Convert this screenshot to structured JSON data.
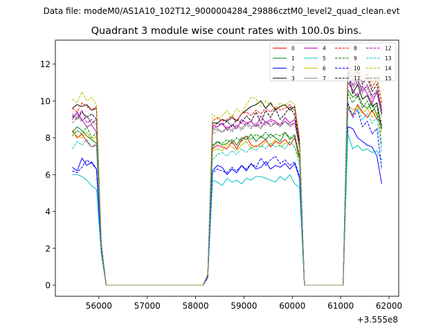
{
  "figure": {
    "suptitle": "Data file: modeM0/AS1A10_102T12_9000004284_29886cztM0_level2_quad_clean.evt"
  },
  "chart_data": {
    "type": "line",
    "title": "Quadrant 3 module wise count rates with 100.0s bins.",
    "xlabel": "",
    "ylabel": "",
    "x_offset_label": "+3.555e8",
    "xlim": [
      55100,
      62200
    ],
    "ylim": [
      -0.6,
      13.3
    ],
    "xticks": [
      56000,
      57000,
      58000,
      59000,
      60000,
      61000,
      62000
    ],
    "xtick_labels": [
      "56000",
      "57000",
      "58000",
      "59000",
      "60000",
      "61000",
      "62000"
    ],
    "yticks": [
      0,
      2,
      4,
      6,
      8,
      10,
      12
    ],
    "ytick_labels": [
      "0",
      "2",
      "4",
      "6",
      "8",
      "10",
      "12"
    ],
    "legend_position": "top-right",
    "x": [
      55450,
      55550,
      55650,
      55750,
      55850,
      55950,
      56050,
      56150,
      56250,
      56350,
      56450,
      56550,
      56650,
      56750,
      56850,
      56950,
      57050,
      57150,
      57250,
      57350,
      57450,
      57550,
      57650,
      57750,
      57850,
      57950,
      58050,
      58150,
      58250,
      58350,
      58450,
      58550,
      58650,
      58750,
      58850,
      58950,
      59050,
      59150,
      59250,
      59350,
      59450,
      59550,
      59650,
      59750,
      59850,
      59950,
      60050,
      60150,
      60250,
      60350,
      60450,
      60550,
      60650,
      60750,
      60850,
      60950,
      61050,
      61150,
      61250,
      61350,
      61450,
      61550,
      61650,
      61750,
      61850
    ],
    "series": [
      {
        "name": "0",
        "color": "#ff0000",
        "dash": "solid",
        "values": [
          8.4,
          8.0,
          8.2,
          7.8,
          7.5,
          7.6,
          2.0,
          0,
          0,
          0,
          0,
          0,
          0,
          0,
          0,
          0,
          0,
          0,
          0,
          0,
          0,
          0,
          0,
          0,
          0,
          0,
          0,
          0,
          0.5,
          7.4,
          7.6,
          7.5,
          7.4,
          7.8,
          7.4,
          7.9,
          8.1,
          7.6,
          7.5,
          7.7,
          7.9,
          7.5,
          7.8,
          7.7,
          7.9,
          7.6,
          8.0,
          6.8,
          0,
          0,
          0,
          0,
          0,
          0,
          0,
          0,
          0,
          9.6,
          9.2,
          9.8,
          9.4,
          9.1,
          9.5,
          9.0,
          8.9
        ]
      },
      {
        "name": "1",
        "color": "#008000",
        "dash": "solid",
        "values": [
          8.3,
          8.6,
          8.4,
          8.1,
          7.9,
          7.7,
          2.0,
          0,
          0,
          0,
          0,
          0,
          0,
          0,
          0,
          0,
          0,
          0,
          0,
          0,
          0,
          0,
          0,
          0,
          0,
          0,
          0,
          0,
          0.5,
          7.5,
          7.8,
          7.6,
          7.7,
          7.9,
          7.6,
          8.0,
          7.9,
          8.2,
          7.8,
          8.1,
          7.9,
          8.2,
          8.0,
          7.8,
          8.3,
          7.9,
          8.1,
          6.9,
          0,
          0,
          0,
          0,
          0,
          0,
          0,
          0,
          0,
          10.6,
          10.2,
          10.4,
          9.8,
          9.6,
          9.9,
          9.2,
          8.7
        ]
      },
      {
        "name": "2",
        "color": "#0000ff",
        "dash": "solid",
        "values": [
          6.4,
          6.2,
          6.9,
          6.5,
          6.7,
          6.3,
          1.8,
          0,
          0,
          0,
          0,
          0,
          0,
          0,
          0,
          0,
          0,
          0,
          0,
          0,
          0,
          0,
          0,
          0,
          0,
          0,
          0,
          0,
          0.4,
          6.2,
          6.5,
          6.4,
          6.0,
          6.3,
          6.1,
          6.5,
          6.2,
          6.6,
          6.3,
          6.4,
          6.7,
          6.3,
          6.5,
          6.4,
          6.6,
          6.3,
          6.6,
          5.8,
          0,
          0,
          0,
          0,
          0,
          0,
          0,
          0,
          0,
          8.6,
          8.5,
          8.0,
          7.8,
          7.6,
          7.5,
          7.0,
          5.5
        ]
      },
      {
        "name": "3",
        "color": "#000000",
        "dash": "solid",
        "values": [
          9.6,
          9.8,
          9.7,
          9.8,
          9.5,
          9.6,
          2.2,
          0,
          0,
          0,
          0,
          0,
          0,
          0,
          0,
          0,
          0,
          0,
          0,
          0,
          0,
          0,
          0,
          0,
          0,
          0,
          0,
          0,
          0.5,
          8.8,
          8.8,
          9.0,
          8.9,
          9.1,
          8.9,
          9.3,
          9.5,
          9.7,
          9.8,
          10.0,
          9.6,
          9.9,
          9.5,
          9.7,
          9.8,
          9.5,
          9.7,
          7.8,
          0,
          0,
          0,
          0,
          0,
          0,
          0,
          0,
          0,
          11.5,
          10.4,
          10.9,
          10.1,
          10.3,
          9.7,
          9.9,
          8.5
        ]
      },
      {
        "name": "4",
        "color": "#bf00bf",
        "dash": "solid",
        "values": [
          9.0,
          9.4,
          9.0,
          8.6,
          8.7,
          8.3,
          2.1,
          0,
          0,
          0,
          0,
          0,
          0,
          0,
          0,
          0,
          0,
          0,
          0,
          0,
          0,
          0,
          0,
          0,
          0,
          0,
          0,
          0,
          0.5,
          8.5,
          8.6,
          8.8,
          8.4,
          8.7,
          8.5,
          9.0,
          8.8,
          8.9,
          8.6,
          9.2,
          8.8,
          9.0,
          8.9,
          8.7,
          9.1,
          8.8,
          9.0,
          7.6,
          0,
          0,
          0,
          0,
          0,
          0,
          0,
          0,
          0,
          11.0,
          10.6,
          10.2,
          10.8,
          10.4,
          9.9,
          10.5,
          9.4
        ]
      },
      {
        "name": "5",
        "color": "#00bfbf",
        "dash": "solid",
        "values": [
          6.0,
          6.0,
          5.9,
          5.7,
          5.4,
          5.2,
          1.7,
          0,
          0,
          0,
          0,
          0,
          0,
          0,
          0,
          0,
          0,
          0,
          0,
          0,
          0,
          0,
          0,
          0,
          0,
          0,
          0,
          0,
          0.4,
          5.7,
          5.6,
          5.4,
          5.8,
          5.6,
          5.7,
          5.5,
          5.8,
          5.7,
          5.9,
          5.9,
          5.8,
          5.7,
          5.6,
          5.9,
          5.7,
          6.0,
          5.5,
          5.3,
          0,
          0,
          0,
          0,
          0,
          0,
          0,
          0,
          0,
          8.2,
          7.4,
          7.6,
          7.3,
          7.4,
          7.2,
          7.3,
          6.8
        ]
      },
      {
        "name": "6",
        "color": "#bfbf00",
        "dash": "solid",
        "values": [
          8.3,
          8.1,
          8.0,
          8.3,
          7.9,
          8.1,
          2.0,
          0,
          0,
          0,
          0,
          0,
          0,
          0,
          0,
          0,
          0,
          0,
          0,
          0,
          0,
          0,
          0,
          0,
          0,
          0,
          0,
          0,
          0.5,
          7.3,
          7.4,
          7.3,
          7.7,
          7.5,
          7.3,
          7.6,
          7.8,
          7.4,
          7.6,
          7.5,
          7.8,
          7.6,
          7.9,
          7.5,
          7.7,
          7.8,
          7.5,
          6.8,
          0,
          0,
          0,
          0,
          0,
          0,
          0,
          0,
          0,
          9.8,
          9.5,
          9.7,
          9.3,
          9.6,
          9.1,
          9.4,
          8.3
        ]
      },
      {
        "name": "7",
        "color": "#808080",
        "dash": "solid",
        "values": [
          9.1,
          9.3,
          8.9,
          9.2,
          8.8,
          9.0,
          2.2,
          0,
          0,
          0,
          0,
          0,
          0,
          0,
          0,
          0,
          0,
          0,
          0,
          0,
          0,
          0,
          0,
          0,
          0,
          0,
          0,
          0,
          0.5,
          8.4,
          8.5,
          8.3,
          8.6,
          8.4,
          8.7,
          8.5,
          8.8,
          8.6,
          8.7,
          8.5,
          8.9,
          8.6,
          8.8,
          8.7,
          8.9,
          8.6,
          8.8,
          7.5,
          0,
          0,
          0,
          0,
          0,
          0,
          0,
          0,
          0,
          11.3,
          10.9,
          11.2,
          10.6,
          10.8,
          10.3,
          10.5,
          9.7
        ]
      },
      {
        "name": "8",
        "color": "#ff0000",
        "dash": "dashed",
        "values": [
          9.6,
          9.4,
          9.9,
          9.7,
          9.5,
          9.7,
          2.3,
          0,
          0,
          0,
          0,
          0,
          0,
          0,
          0,
          0,
          0,
          0,
          0,
          0,
          0,
          0,
          0,
          0,
          0,
          0,
          0,
          0,
          0.6,
          8.9,
          9.1,
          8.9,
          9.0,
          9.2,
          8.9,
          9.3,
          9.4,
          9.2,
          9.5,
          9.3,
          9.6,
          9.4,
          9.7,
          9.5,
          9.6,
          9.8,
          9.5,
          7.9,
          0,
          0,
          0,
          0,
          0,
          0,
          0,
          0,
          0,
          12.0,
          11.4,
          11.8,
          11.0,
          11.5,
          10.7,
          11.2,
          9.9
        ]
      },
      {
        "name": "9",
        "color": "#008000",
        "dash": "dashed",
        "values": [
          8.1,
          8.4,
          8.2,
          8.6,
          8.0,
          8.3,
          2.0,
          0,
          0,
          0,
          0,
          0,
          0,
          0,
          0,
          0,
          0,
          0,
          0,
          0,
          0,
          0,
          0,
          0,
          0,
          0,
          0,
          0,
          0.5,
          7.6,
          7.8,
          7.7,
          7.9,
          7.7,
          8.0,
          7.8,
          8.1,
          7.9,
          8.2,
          8.0,
          8.3,
          8.0,
          8.2,
          8.1,
          8.3,
          8.0,
          8.2,
          7.0,
          0,
          0,
          0,
          0,
          0,
          0,
          0,
          0,
          0,
          10.4,
          9.9,
          10.3,
          9.6,
          10.0,
          9.4,
          9.8,
          7.6
        ]
      },
      {
        "name": "10",
        "color": "#0000ff",
        "dash": "dashed",
        "values": [
          6.2,
          6.1,
          6.4,
          6.8,
          6.6,
          6.3,
          1.8,
          0,
          0,
          0,
          0,
          0,
          0,
          0,
          0,
          0,
          0,
          0,
          0,
          0,
          0,
          0,
          0,
          0,
          0,
          0,
          0,
          0,
          0.4,
          6.1,
          6.3,
          6.2,
          6.1,
          6.4,
          6.2,
          6.5,
          6.3,
          6.6,
          6.4,
          6.9,
          6.5,
          6.8,
          7.0,
          6.6,
          6.8,
          6.5,
          6.7,
          5.9,
          0,
          0,
          0,
          0,
          0,
          0,
          0,
          0,
          0,
          9.9,
          9.1,
          9.5,
          8.6,
          8.9,
          8.2,
          8.5,
          6.3
        ]
      },
      {
        "name": "11",
        "color": "#000000",
        "dash": "dashed",
        "values": [
          9.2,
          9.0,
          9.4,
          9.1,
          9.3,
          9.0,
          2.2,
          0,
          0,
          0,
          0,
          0,
          0,
          0,
          0,
          0,
          0,
          0,
          0,
          0,
          0,
          0,
          0,
          0,
          0,
          0,
          0,
          0,
          0.5,
          8.6,
          8.8,
          8.7,
          8.9,
          8.6,
          9.0,
          8.8,
          9.2,
          8.9,
          9.4,
          8.8,
          9.5,
          9.1,
          9.6,
          9.0,
          9.3,
          9.7,
          9.2,
          7.7,
          0,
          0,
          0,
          0,
          0,
          0,
          0,
          0,
          0,
          11.7,
          11.2,
          11.6,
          10.9,
          11.3,
          10.5,
          10.9,
          9.3
        ]
      },
      {
        "name": "12",
        "color": "#bf00bf",
        "dash": "dashed",
        "values": [
          9.3,
          9.1,
          9.5,
          8.8,
          9.0,
          8.7,
          2.2,
          0,
          0,
          0,
          0,
          0,
          0,
          0,
          0,
          0,
          0,
          0,
          0,
          0,
          0,
          0,
          0,
          0,
          0,
          0,
          0,
          0,
          0.5,
          8.7,
          8.6,
          8.8,
          8.5,
          8.7,
          8.6,
          8.8,
          8.7,
          8.9,
          8.6,
          8.8,
          8.7,
          8.9,
          8.8,
          8.6,
          8.9,
          8.7,
          8.8,
          7.5,
          0,
          0,
          0,
          0,
          0,
          0,
          0,
          0,
          0,
          11.4,
          10.8,
          11.1,
          10.5,
          10.9,
          10.2,
          10.6,
          9.5
        ]
      },
      {
        "name": "13",
        "color": "#00bfbf",
        "dash": "dashed",
        "values": [
          7.4,
          7.8,
          7.6,
          7.9,
          7.5,
          7.7,
          1.9,
          0,
          0,
          0,
          0,
          0,
          0,
          0,
          0,
          0,
          0,
          0,
          0,
          0,
          0,
          0,
          0,
          0,
          0,
          0,
          0,
          0,
          0.5,
          6.8,
          7.1,
          7.2,
          7.0,
          7.3,
          7.1,
          7.4,
          7.2,
          7.5,
          7.3,
          7.6,
          7.4,
          7.7,
          7.5,
          7.6,
          7.4,
          7.8,
          7.5,
          6.5,
          0,
          0,
          0,
          0,
          0,
          0,
          0,
          0,
          0,
          9.7,
          9.3,
          9.6,
          9.0,
          9.3,
          8.8,
          9.1,
          7.2
        ]
      },
      {
        "name": "14",
        "color": "#bfbf00",
        "dash": "dashed",
        "values": [
          10.1,
          9.9,
          10.5,
          10.0,
          10.2,
          9.8,
          2.4,
          0,
          0,
          0,
          0,
          0,
          0,
          0,
          0,
          0,
          0,
          0,
          0,
          0,
          0,
          0,
          0,
          0,
          0,
          0,
          0,
          0,
          0.6,
          9.3,
          9.0,
          9.2,
          9.5,
          9.1,
          9.6,
          9.3,
          9.8,
          10.2,
          10.1,
          9.7,
          10.0,
          9.8,
          9.6,
          9.9,
          9.7,
          10.0,
          9.8,
          8.0,
          0,
          0,
          0,
          0,
          0,
          0,
          0,
          0,
          0,
          12.3,
          11.6,
          12.1,
          11.2,
          11.8,
          11.0,
          11.4,
          10.0
        ]
      },
      {
        "name": "15",
        "color": "#808080",
        "dash": "dashed",
        "values": [
          8.8,
          9.1,
          8.9,
          9.2,
          8.7,
          9.0,
          2.1,
          0,
          0,
          0,
          0,
          0,
          0,
          0,
          0,
          0,
          0,
          0,
          0,
          0,
          0,
          0,
          0,
          0,
          0,
          0,
          0,
          0,
          0.5,
          8.2,
          8.4,
          8.3,
          8.5,
          8.3,
          8.6,
          8.4,
          8.7,
          8.5,
          8.8,
          8.6,
          8.9,
          8.7,
          8.8,
          8.6,
          8.9,
          8.7,
          8.8,
          7.4,
          0,
          0,
          0,
          0,
          0,
          0,
          0,
          0,
          0,
          11.1,
          10.7,
          11.0,
          10.4,
          10.7,
          10.1,
          10.4,
          9.1
        ]
      }
    ]
  }
}
